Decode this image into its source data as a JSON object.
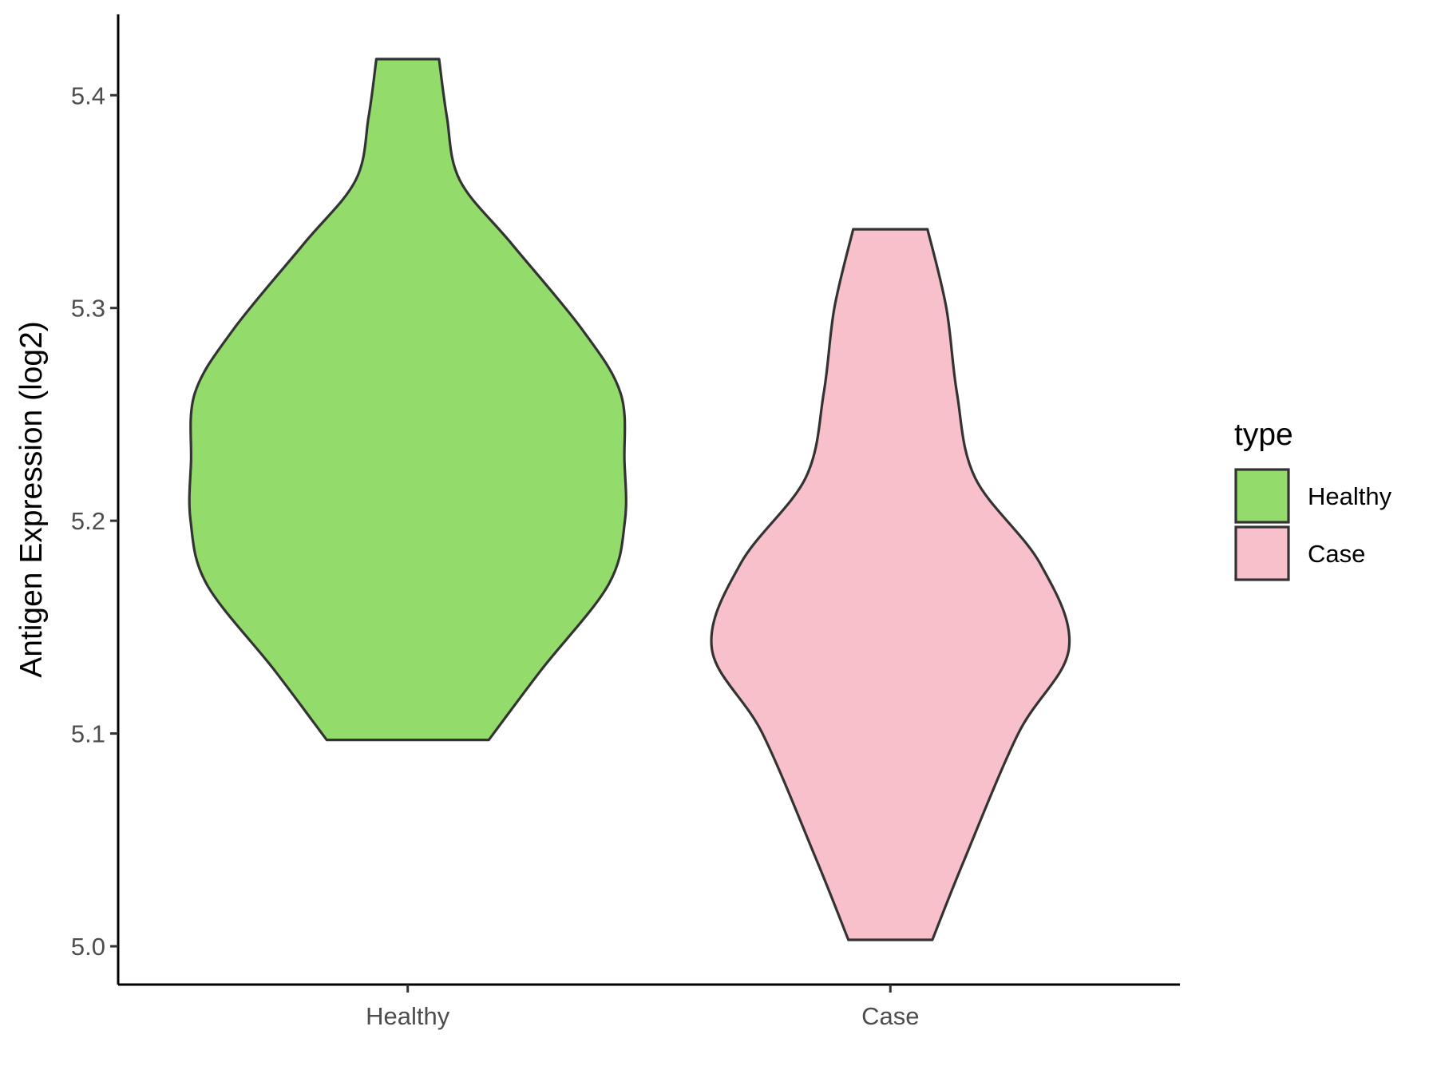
{
  "chart_data": {
    "type": "violin",
    "xlabel": "",
    "ylabel": "Antigen Expression (log2)",
    "categories": [
      "Healthy",
      "Case"
    ],
    "ylim": [
      4.982,
      5.438
    ],
    "yticks": [
      5.0,
      5.1,
      5.2,
      5.3,
      5.4
    ],
    "ytick_labels": [
      "5.0",
      "5.1",
      "5.2",
      "5.3",
      "5.4"
    ],
    "grid": false,
    "legend": {
      "title": "type",
      "position": "right",
      "entries": [
        {
          "label": "Healthy",
          "color": "#93dc6b"
        },
        {
          "label": "Case",
          "color": "#f8c0cb"
        }
      ]
    },
    "series": [
      {
        "category": "Healthy",
        "color": "#93dc6b",
        "min": 5.097,
        "max": 5.417,
        "density_profile": [
          {
            "y": 5.097,
            "half_width": 0.168
          },
          {
            "y": 5.13,
            "half_width": 0.277
          },
          {
            "y": 5.17,
            "half_width": 0.416
          },
          {
            "y": 5.2,
            "half_width": 0.45
          },
          {
            "y": 5.228,
            "half_width": 0.449
          },
          {
            "y": 5.26,
            "half_width": 0.441
          },
          {
            "y": 5.29,
            "half_width": 0.361
          },
          {
            "y": 5.33,
            "half_width": 0.216
          },
          {
            "y": 5.36,
            "half_width": 0.108
          },
          {
            "y": 5.39,
            "half_width": 0.081
          },
          {
            "y": 5.417,
            "half_width": 0.065
          }
        ]
      },
      {
        "category": "Case",
        "color": "#f8c0cb",
        "min": 5.003,
        "max": 5.337,
        "density_profile": [
          {
            "y": 5.003,
            "half_width": 0.087
          },
          {
            "y": 5.04,
            "half_width": 0.152
          },
          {
            "y": 5.1,
            "half_width": 0.265
          },
          {
            "y": 5.14,
            "half_width": 0.37
          },
          {
            "y": 5.18,
            "half_width": 0.31
          },
          {
            "y": 5.22,
            "half_width": 0.176
          },
          {
            "y": 5.26,
            "half_width": 0.138
          },
          {
            "y": 5.3,
            "half_width": 0.116
          },
          {
            "y": 5.337,
            "half_width": 0.077
          }
        ]
      }
    ]
  }
}
